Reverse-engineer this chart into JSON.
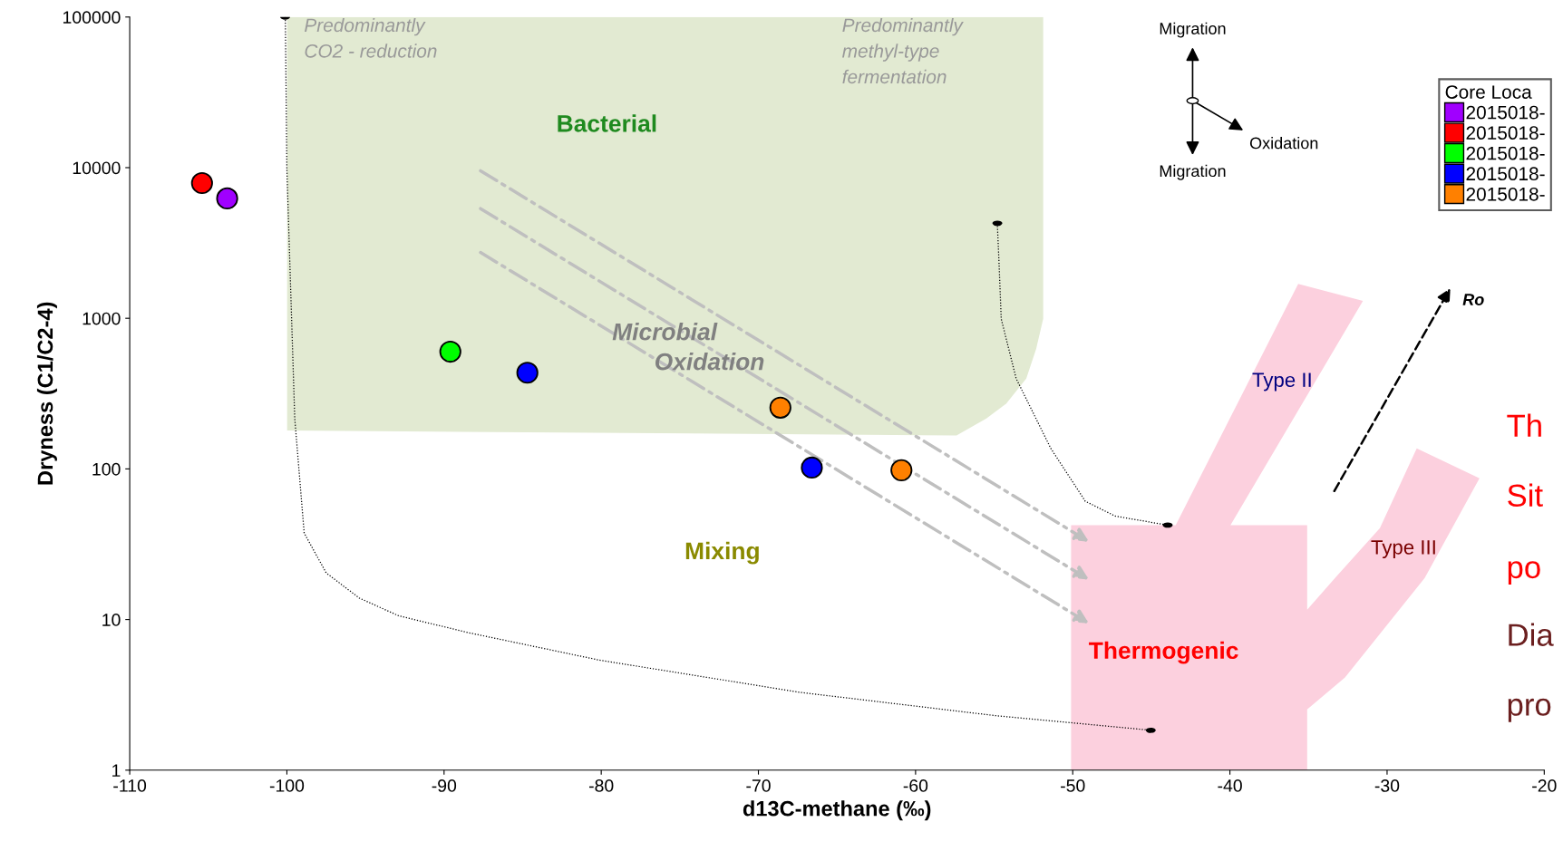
{
  "chart_data": {
    "type": "scatter",
    "xlabel": "d13C-methane (‰)",
    "ylabel": "Dryness (C1/C2-4)",
    "legend_title": "Core Loca",
    "legend": "top right",
    "marker": "circle",
    "log": "y",
    "grid": false,
    "xlim": [
      -110,
      -20
    ],
    "xticks": [
      -110,
      -100,
      -90,
      -80,
      -70,
      -60,
      -50,
      -40,
      -30,
      -20
    ],
    "ylim": [
      1,
      100000
    ],
    "yticks": [
      1,
      10,
      100,
      1000,
      10000,
      100000
    ],
    "series": [
      {
        "name": "2015018-",
        "color": "#a000ff",
        "x": [
          -103.8
        ],
        "values": [
          6250
        ]
      },
      {
        "name": "2015018-",
        "color": "#ff0000",
        "x": [
          -105.4
        ],
        "values": [
          7900
        ]
      },
      {
        "name": "2015018-",
        "color": "#00ff00",
        "x": [
          -89.6
        ],
        "values": [
          600
        ]
      },
      {
        "name": "2015018-",
        "color": "#0000ff",
        "x": [
          -84.7,
          -66.6
        ],
        "values": [
          435,
          102
        ]
      },
      {
        "name": "2015018-",
        "color": "#ff8000",
        "x": [
          -68.6,
          -60.9
        ],
        "values": [
          255,
          98
        ]
      },
      {
        "type": "line",
        "marker": "none",
        "color": "#000000",
        "line_style": "dotted",
        "x": [
          -100.1,
          -100.0,
          -99.5,
          -98.9,
          -97.5,
          -95.4,
          -92.9,
          -88.5,
          -80.2,
          -67.5,
          -54.9,
          -45.0
        ],
        "values": [
          100000,
          9700,
          216,
          37.5,
          20.4,
          13.9,
          10.6,
          8.2,
          5.4,
          3.3,
          2.3,
          1.84
        ]
      },
      {
        "type": "line",
        "marker": "none",
        "color": "#000000",
        "line_style": "dotted",
        "x": [
          -54.8,
          -54.7,
          -54.55,
          -53.6,
          -51.4,
          -49.2,
          -47.3,
          -44.0
        ],
        "values": [
          4280,
          2470,
          990,
          398,
          137,
          61,
          48.6,
          42.4
        ]
      }
    ],
    "annotations": [
      "Predominantly\nCO2 - reduction",
      "Predominantly\nmethyl-type\nfermentation",
      "Bacterial",
      "Microbial",
      "Oxidation",
      "Mixing",
      "Thermogenic",
      "Type II",
      "Type III",
      "Ro",
      "Migration",
      "Oxidation",
      "Migration",
      "Th",
      "Sit",
      "po",
      "Dia",
      "pro"
    ]
  }
}
